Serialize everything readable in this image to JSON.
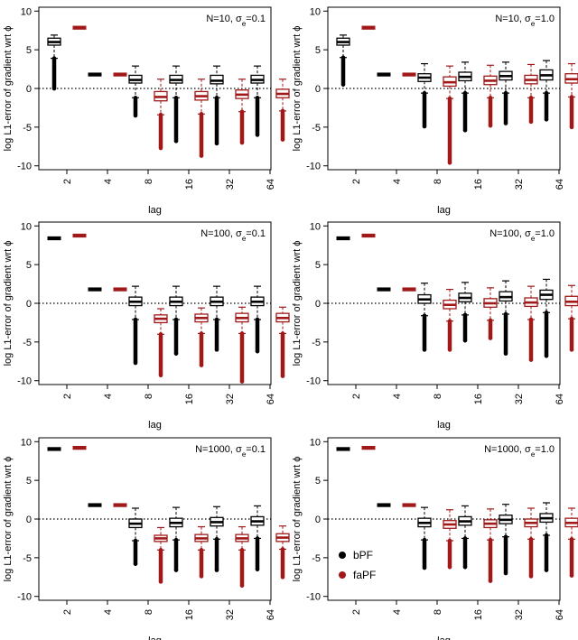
{
  "chart_data": {
    "type": "boxplot-grid",
    "description_note": "Six panels of paired boxplots comparing bPF and faPF by lag",
    "categories": [
      "2",
      "4",
      "8",
      "16",
      "32",
      "64"
    ],
    "xlabel": "lag",
    "ylabel": "log L1-error of gradient wrt ϕ",
    "ylim": [
      -10.5,
      10.5
    ],
    "yticks": [
      -10,
      -5,
      0,
      5,
      10
    ],
    "reference_line": 0,
    "legend": {
      "placement": "bottom-left of last panel",
      "entries": [
        {
          "name": "bPF",
          "color": "#000000"
        },
        {
          "name": "faPF",
          "color": "#a01818"
        }
      ]
    },
    "panels": [
      {
        "title_prefix": "N=10, ",
        "sigma": "σ",
        "sigma_sub": "e",
        "title_suffix": "=0.1",
        "show_legend": false,
        "series": [
          {
            "name": "bPF",
            "boxes": [
              {
                "q1": 5.6,
                "med": 6.0,
                "q3": 6.5,
                "lo": 3.9,
                "hi": 6.9,
                "out_lo": 0.0,
                "out_hi": 6.9
              },
              {
                "q1": 1.75,
                "med": 1.8,
                "q3": 1.85,
                "lo": 1.75,
                "hi": 1.85,
                "out_lo": 1.75,
                "out_hi": 1.85
              },
              {
                "q1": 0.7,
                "med": 1.1,
                "q3": 1.7,
                "lo": -1.2,
                "hi": 2.9,
                "out_lo": -3.5,
                "out_hi": 2.9
              },
              {
                "q1": 0.7,
                "med": 1.1,
                "q3": 1.7,
                "lo": -1.2,
                "hi": 2.9,
                "out_lo": -6.8,
                "out_hi": 2.9
              },
              {
                "q1": 0.6,
                "med": 1.0,
                "q3": 1.7,
                "lo": -1.2,
                "hi": 2.9,
                "out_lo": -7.1,
                "out_hi": 2.9
              },
              {
                "q1": 0.7,
                "med": 1.1,
                "q3": 1.7,
                "lo": -1.2,
                "hi": 2.9,
                "out_lo": -6.0,
                "out_hi": 2.9
              }
            ]
          },
          {
            "name": "faPF",
            "boxes": [
              {
                "q1": 7.8,
                "med": 7.85,
                "q3": 7.9,
                "lo": 7.75,
                "hi": 7.95,
                "out_lo": 7.75,
                "out_hi": 7.95
              },
              {
                "q1": 1.75,
                "med": 1.8,
                "q3": 1.85,
                "lo": 1.75,
                "hi": 1.85,
                "out_lo": 1.75,
                "out_hi": 1.85
              },
              {
                "q1": -1.6,
                "med": -1.1,
                "q3": -0.4,
                "lo": -3.4,
                "hi": 1.2,
                "out_lo": -7.7,
                "out_hi": 1.2
              },
              {
                "q1": -1.5,
                "med": -1.0,
                "q3": -0.4,
                "lo": -3.3,
                "hi": 1.2,
                "out_lo": -8.7,
                "out_hi": 1.2
              },
              {
                "q1": -1.3,
                "med": -0.8,
                "q3": -0.2,
                "lo": -3.0,
                "hi": 1.2,
                "out_lo": -7.0,
                "out_hi": 1.2
              },
              {
                "q1": -1.2,
                "med": -0.7,
                "q3": -0.1,
                "lo": -2.9,
                "hi": 1.2,
                "out_lo": -6.6,
                "out_hi": 1.2
              }
            ]
          }
        ]
      },
      {
        "title_prefix": "N=10, ",
        "sigma": "σ",
        "sigma_sub": "e",
        "title_suffix": "=1.0",
        "show_legend": false,
        "series": [
          {
            "name": "bPF",
            "boxes": [
              {
                "q1": 5.6,
                "med": 6.0,
                "q3": 6.5,
                "lo": 4.0,
                "hi": 6.9,
                "out_lo": 0.5,
                "out_hi": 6.9
              },
              {
                "q1": 1.75,
                "med": 1.8,
                "q3": 1.85,
                "lo": 1.75,
                "hi": 1.85,
                "out_lo": 1.75,
                "out_hi": 1.85
              },
              {
                "q1": 0.9,
                "med": 1.4,
                "q3": 1.9,
                "lo": -0.6,
                "hi": 3.2,
                "out_lo": -4.9,
                "out_hi": 3.2
              },
              {
                "q1": 1.0,
                "med": 1.5,
                "q3": 2.1,
                "lo": -0.6,
                "hi": 3.4,
                "out_lo": -5.4,
                "out_hi": 3.4
              },
              {
                "q1": 1.1,
                "med": 1.6,
                "q3": 2.2,
                "lo": -0.6,
                "hi": 3.4,
                "out_lo": -4.5,
                "out_hi": 3.4
              },
              {
                "q1": 1.1,
                "med": 1.7,
                "q3": 2.4,
                "lo": -0.6,
                "hi": 3.6,
                "out_lo": -4.0,
                "out_hi": 3.6
              }
            ]
          },
          {
            "name": "faPF",
            "boxes": [
              {
                "q1": 7.8,
                "med": 7.85,
                "q3": 7.9,
                "lo": 7.75,
                "hi": 7.95,
                "out_lo": 7.75,
                "out_hi": 7.95
              },
              {
                "q1": 1.75,
                "med": 1.8,
                "q3": 1.85,
                "lo": 1.75,
                "hi": 1.85,
                "out_lo": 1.75,
                "out_hi": 1.85
              },
              {
                "q1": 0.3,
                "med": 0.8,
                "q3": 1.5,
                "lo": -1.3,
                "hi": 2.9,
                "out_lo": -9.6,
                "out_hi": 2.9
              },
              {
                "q1": 0.5,
                "med": 1.0,
                "q3": 1.6,
                "lo": -1.2,
                "hi": 3.0,
                "out_lo": -4.8,
                "out_hi": 3.0
              },
              {
                "q1": 0.6,
                "med": 1.1,
                "q3": 1.7,
                "lo": -1.2,
                "hi": 3.1,
                "out_lo": -4.3,
                "out_hi": 3.1
              },
              {
                "q1": 0.7,
                "med": 1.2,
                "q3": 1.9,
                "lo": -1.1,
                "hi": 3.2,
                "out_lo": -5.0,
                "out_hi": 3.2
              }
            ]
          }
        ]
      },
      {
        "title_prefix": "N=100, ",
        "sigma": "σ",
        "sigma_sub": "e",
        "title_suffix": "=0.1",
        "show_legend": false,
        "series": [
          {
            "name": "bPF",
            "boxes": [
              {
                "q1": 8.35,
                "med": 8.4,
                "q3": 8.45,
                "lo": 8.3,
                "hi": 8.5,
                "out_lo": 8.3,
                "out_hi": 8.5
              },
              {
                "q1": 1.75,
                "med": 1.8,
                "q3": 1.85,
                "lo": 1.75,
                "hi": 1.85,
                "out_lo": 1.75,
                "out_hi": 1.85
              },
              {
                "q1": -0.3,
                "med": 0.2,
                "q3": 0.8,
                "lo": -2.1,
                "hi": 2.2,
                "out_lo": -7.7,
                "out_hi": 2.2
              },
              {
                "q1": -0.3,
                "med": 0.2,
                "q3": 0.8,
                "lo": -2.1,
                "hi": 2.2,
                "out_lo": -6.5,
                "out_hi": 2.2
              },
              {
                "q1": -0.3,
                "med": 0.2,
                "q3": 0.8,
                "lo": -2.1,
                "hi": 2.2,
                "out_lo": -6.0,
                "out_hi": 2.2
              },
              {
                "q1": -0.3,
                "med": 0.2,
                "q3": 0.8,
                "lo": -2.1,
                "hi": 2.2,
                "out_lo": -6.2,
                "out_hi": 2.2
              }
            ]
          },
          {
            "name": "faPF",
            "boxes": [
              {
                "q1": 8.7,
                "med": 8.75,
                "q3": 8.8,
                "lo": 8.65,
                "hi": 8.85,
                "out_lo": 8.65,
                "out_hi": 8.85
              },
              {
                "q1": 1.75,
                "med": 1.8,
                "q3": 1.85,
                "lo": 1.75,
                "hi": 1.85,
                "out_lo": 1.75,
                "out_hi": 1.85
              },
              {
                "q1": -2.5,
                "med": -2.0,
                "q3": -1.5,
                "lo": -4.0,
                "hi": -0.7,
                "out_lo": -9.3,
                "out_hi": -0.7
              },
              {
                "q1": -2.4,
                "med": -1.9,
                "q3": -1.4,
                "lo": -3.9,
                "hi": -0.6,
                "out_lo": -8.0,
                "out_hi": -0.6
              },
              {
                "q1": -2.4,
                "med": -1.9,
                "q3": -1.3,
                "lo": -3.9,
                "hi": -0.5,
                "out_lo": -10.1,
                "out_hi": -0.5
              },
              {
                "q1": -2.4,
                "med": -1.9,
                "q3": -1.3,
                "lo": -3.9,
                "hi": -0.5,
                "out_lo": -9.4,
                "out_hi": -0.5
              }
            ]
          }
        ]
      },
      {
        "title_prefix": "N=100, ",
        "sigma": "σ",
        "sigma_sub": "e",
        "title_suffix": "=1.0",
        "show_legend": false,
        "series": [
          {
            "name": "bPF",
            "boxes": [
              {
                "q1": 8.35,
                "med": 8.4,
                "q3": 8.45,
                "lo": 8.3,
                "hi": 8.5,
                "out_lo": 8.3,
                "out_hi": 8.5
              },
              {
                "q1": 1.75,
                "med": 1.8,
                "q3": 1.85,
                "lo": 1.75,
                "hi": 1.85,
                "out_lo": 1.75,
                "out_hi": 1.85
              },
              {
                "q1": 0.0,
                "med": 0.5,
                "q3": 1.1,
                "lo": -1.6,
                "hi": 2.6,
                "out_lo": -6.0,
                "out_hi": 2.6
              },
              {
                "q1": 0.2,
                "med": 0.7,
                "q3": 1.3,
                "lo": -1.5,
                "hi": 2.7,
                "out_lo": -4.8,
                "out_hi": 2.7
              },
              {
                "q1": 0.3,
                "med": 0.8,
                "q3": 1.5,
                "lo": -1.4,
                "hi": 2.9,
                "out_lo": -6.5,
                "out_hi": 2.9
              },
              {
                "q1": 0.5,
                "med": 1.1,
                "q3": 1.7,
                "lo": -1.2,
                "hi": 3.1,
                "out_lo": -6.8,
                "out_hi": 3.1
              }
            ]
          },
          {
            "name": "faPF",
            "boxes": [
              {
                "q1": 8.7,
                "med": 8.75,
                "q3": 8.8,
                "lo": 8.65,
                "hi": 8.85,
                "out_lo": 8.65,
                "out_hi": 8.85
              },
              {
                "q1": 1.75,
                "med": 1.8,
                "q3": 1.85,
                "lo": 1.75,
                "hi": 1.85,
                "out_lo": 1.75,
                "out_hi": 1.85
              },
              {
                "q1": -0.7,
                "med": -0.2,
                "q3": 0.4,
                "lo": -2.3,
                "hi": 1.8,
                "out_lo": -6.0,
                "out_hi": 1.8
              },
              {
                "q1": -0.5,
                "med": 0.0,
                "q3": 0.6,
                "lo": -2.2,
                "hi": 2.0,
                "out_lo": -4.5,
                "out_hi": 2.0
              },
              {
                "q1": -0.4,
                "med": 0.1,
                "q3": 0.7,
                "lo": -2.1,
                "hi": 2.2,
                "out_lo": -7.3,
                "out_hi": 2.2
              },
              {
                "q1": -0.3,
                "med": 0.2,
                "q3": 0.9,
                "lo": -2.0,
                "hi": 2.3,
                "out_lo": -6.0,
                "out_hi": 2.3
              }
            ]
          }
        ]
      },
      {
        "title_prefix": "N=1000, ",
        "sigma": "σ",
        "sigma_sub": "e",
        "title_suffix": "=0.1",
        "show_legend": false,
        "series": [
          {
            "name": "bPF",
            "boxes": [
              {
                "q1": 9.0,
                "med": 9.05,
                "q3": 9.1,
                "lo": 8.95,
                "hi": 9.15,
                "out_lo": 8.95,
                "out_hi": 9.15
              },
              {
                "q1": 1.75,
                "med": 1.8,
                "q3": 1.85,
                "lo": 1.75,
                "hi": 1.85,
                "out_lo": 1.75,
                "out_hi": 1.85
              },
              {
                "q1": -1.1,
                "med": -0.6,
                "q3": 0.0,
                "lo": -2.8,
                "hi": 1.4,
                "out_lo": -5.8,
                "out_hi": 1.4
              },
              {
                "q1": -1.0,
                "med": -0.5,
                "q3": 0.1,
                "lo": -2.7,
                "hi": 1.5,
                "out_lo": -6.6,
                "out_hi": 1.5
              },
              {
                "q1": -0.9,
                "med": -0.4,
                "q3": 0.2,
                "lo": -2.6,
                "hi": 1.6,
                "out_lo": -6.6,
                "out_hi": 1.6
              },
              {
                "q1": -0.8,
                "med": -0.3,
                "q3": 0.3,
                "lo": -2.5,
                "hi": 1.7,
                "out_lo": -6.5,
                "out_hi": 1.7
              }
            ]
          },
          {
            "name": "faPF",
            "boxes": [
              {
                "q1": 9.15,
                "med": 9.2,
                "q3": 9.25,
                "lo": 9.1,
                "hi": 9.3,
                "out_lo": 9.1,
                "out_hi": 9.3
              },
              {
                "q1": 1.75,
                "med": 1.8,
                "q3": 1.85,
                "lo": 1.75,
                "hi": 1.85,
                "out_lo": 1.75,
                "out_hi": 1.85
              },
              {
                "q1": -2.9,
                "med": -2.5,
                "q3": -2.1,
                "lo": -4.0,
                "hi": -1.1,
                "out_lo": -8.1,
                "out_hi": -1.1
              },
              {
                "q1": -2.9,
                "med": -2.5,
                "q3": -2.0,
                "lo": -4.0,
                "hi": -1.0,
                "out_lo": -7.4,
                "out_hi": -1.0
              },
              {
                "q1": -2.9,
                "med": -2.5,
                "q3": -2.0,
                "lo": -4.0,
                "hi": -1.0,
                "out_lo": -8.6,
                "out_hi": -1.0
              },
              {
                "q1": -2.9,
                "med": -2.4,
                "q3": -1.9,
                "lo": -3.9,
                "hi": -0.9,
                "out_lo": -7.5,
                "out_hi": -0.9
              }
            ]
          }
        ]
      },
      {
        "title_prefix": "N=1000, ",
        "sigma": "σ",
        "sigma_sub": "e",
        "title_suffix": "=1.0",
        "show_legend": true,
        "series": [
          {
            "name": "bPF",
            "boxes": [
              {
                "q1": 9.0,
                "med": 9.05,
                "q3": 9.1,
                "lo": 8.95,
                "hi": 9.15,
                "out_lo": 8.95,
                "out_hi": 9.15
              },
              {
                "q1": 1.75,
                "med": 1.8,
                "q3": 1.85,
                "lo": 1.75,
                "hi": 1.85,
                "out_lo": 1.75,
                "out_hi": 1.85
              },
              {
                "q1": -1.0,
                "med": -0.5,
                "q3": 0.1,
                "lo": -2.7,
                "hi": 1.5,
                "out_lo": -6.3,
                "out_hi": 1.5
              },
              {
                "q1": -0.8,
                "med": -0.3,
                "q3": 0.3,
                "lo": -2.5,
                "hi": 1.7,
                "out_lo": -6.2,
                "out_hi": 1.7
              },
              {
                "q1": -0.6,
                "med": -0.1,
                "q3": 0.5,
                "lo": -2.3,
                "hi": 1.9,
                "out_lo": -7.0,
                "out_hi": 1.9
              },
              {
                "q1": -0.4,
                "med": 0.1,
                "q3": 0.7,
                "lo": -2.1,
                "hi": 2.1,
                "out_lo": -6.6,
                "out_hi": 2.1
              }
            ]
          },
          {
            "name": "faPF",
            "boxes": [
              {
                "q1": 9.15,
                "med": 9.2,
                "q3": 9.25,
                "lo": 9.1,
                "hi": 9.3,
                "out_lo": 9.1,
                "out_hi": 9.3
              },
              {
                "q1": 1.75,
                "med": 1.8,
                "q3": 1.85,
                "lo": 1.75,
                "hi": 1.85,
                "out_lo": 1.75,
                "out_hi": 1.85
              },
              {
                "q1": -1.2,
                "med": -0.7,
                "q3": -0.2,
                "lo": -2.8,
                "hi": 1.2,
                "out_lo": -6.2,
                "out_hi": 1.2
              },
              {
                "q1": -1.1,
                "med": -0.6,
                "q3": -0.1,
                "lo": -2.7,
                "hi": 1.3,
                "out_lo": -8.0,
                "out_hi": 1.3
              },
              {
                "q1": -1.0,
                "med": -0.5,
                "q3": 0.0,
                "lo": -2.6,
                "hi": 1.4,
                "out_lo": -7.4,
                "out_hi": 1.4
              },
              {
                "q1": -1.0,
                "med": -0.5,
                "q3": 0.1,
                "lo": -2.6,
                "hi": 1.4,
                "out_lo": -7.3,
                "out_hi": 1.4
              }
            ]
          }
        ]
      }
    ]
  }
}
